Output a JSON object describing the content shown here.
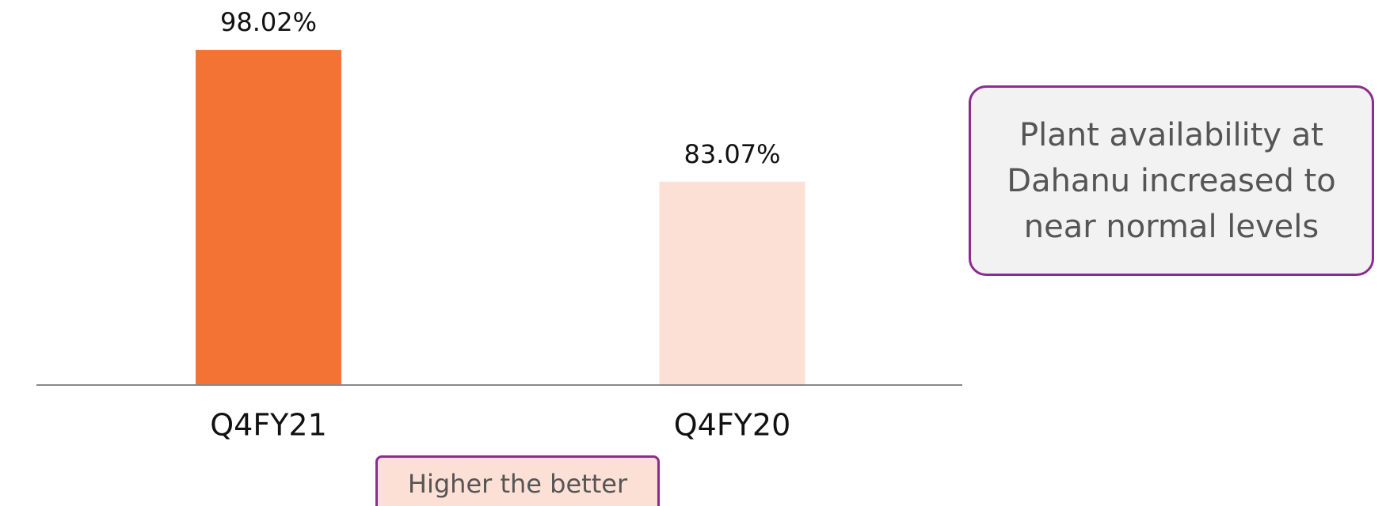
{
  "chart_data": {
    "type": "bar",
    "categories": [
      "Q4FY21",
      "Q4FY20"
    ],
    "values": [
      98.02,
      83.07
    ],
    "value_labels": [
      "98.02%",
      "83.07%"
    ],
    "colors": [
      "#f37335",
      "#fce0d6"
    ],
    "ylim": [
      60,
      100
    ],
    "annotations": [
      "Plant availability at Dahanu increased to near normal levels",
      "Higher the better"
    ]
  }
}
